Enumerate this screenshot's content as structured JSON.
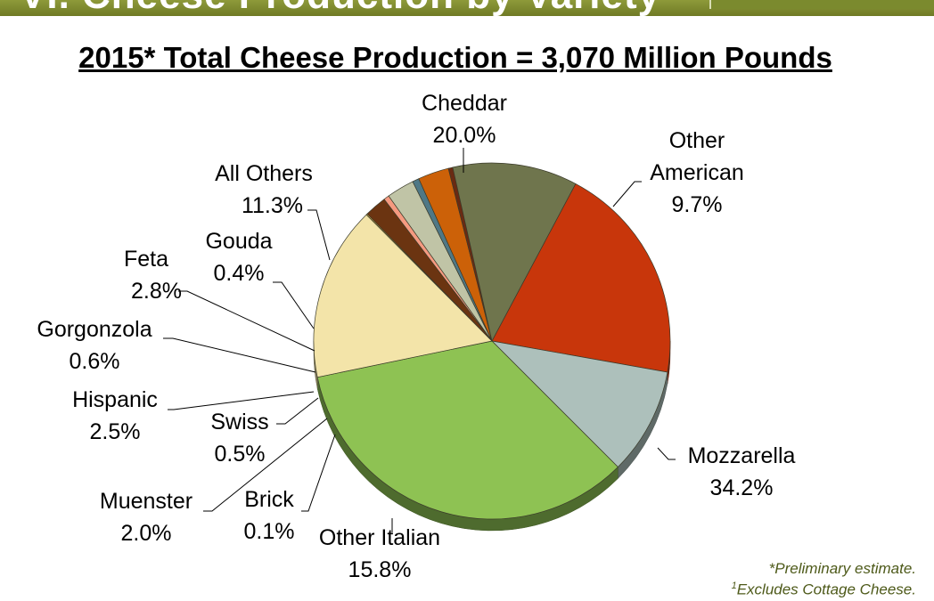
{
  "header": {
    "title": "VI. Cheese Production by Variety"
  },
  "chart_data": {
    "type": "pie",
    "title": "2015* Total Cheese Production = 3,070 Million Pounds",
    "slices": [
      {
        "name": "Cheddar",
        "value": 20.0,
        "label": "20.0%",
        "color": "#c8360b"
      },
      {
        "name": "Other American",
        "value": 9.7,
        "label": "9.7%",
        "color": "#adc0bb"
      },
      {
        "name": "Mozzarella",
        "value": 34.2,
        "label": "34.2%",
        "color": "#8ec253"
      },
      {
        "name": "Other Italian",
        "value": 15.8,
        "label": "15.8%",
        "color": "#f3e4a9"
      },
      {
        "name": "Brick",
        "value": 0.1,
        "label": "0.1%",
        "color": "#d9b84e"
      },
      {
        "name": "Muenster",
        "value": 2.0,
        "label": "2.0%",
        "color": "#6b3411"
      },
      {
        "name": "Swiss",
        "value": 0.5,
        "label": "0.5%",
        "color": "#f59a80"
      },
      {
        "name": "Hispanic",
        "value": 2.5,
        "label": "2.5%",
        "color": "#c0c4a6"
      },
      {
        "name": "Gorgonzola",
        "value": 0.6,
        "label": "0.6%",
        "color": "#4f7886"
      },
      {
        "name": "Feta",
        "value": 2.8,
        "label": "2.8%",
        "color": "#cc6108"
      },
      {
        "name": "Gouda",
        "value": 0.4,
        "label": "0.4%",
        "color": "#6a2a12"
      },
      {
        "name": "All Others",
        "value": 11.3,
        "label": "11.3%",
        "color": "#6f754d"
      }
    ]
  },
  "labels": {
    "cheddar": {
      "name": "Cheddar",
      "pct": "20.0%"
    },
    "otheramerican": {
      "line1": "Other",
      "line2": "American",
      "pct": "9.7%"
    },
    "mozzarella": {
      "name": "Mozzarella",
      "pct": "34.2%"
    },
    "otheritalian": {
      "name": "Other Italian",
      "pct": "15.8%"
    },
    "brick": {
      "name": "Brick",
      "pct": "0.1%"
    },
    "muenster": {
      "name": "Muenster",
      "pct": "2.0%"
    },
    "swiss": {
      "name": "Swiss",
      "pct": "0.5%"
    },
    "hispanic": {
      "name": "Hispanic",
      "pct": "2.5%"
    },
    "gorgonzola": {
      "name": "Gorgonzola",
      "pct": "0.6%"
    },
    "feta": {
      "name": "Feta",
      "pct": "2.8%"
    },
    "gouda": {
      "name": "Gouda",
      "pct": "0.4%"
    },
    "allothers": {
      "name": "All Others",
      "pct": "11.3%"
    }
  },
  "footnotes": {
    "preliminary": "*Preliminary estimate.",
    "excludes_mark": "1",
    "excludes": "Excludes Cottage Cheese."
  }
}
